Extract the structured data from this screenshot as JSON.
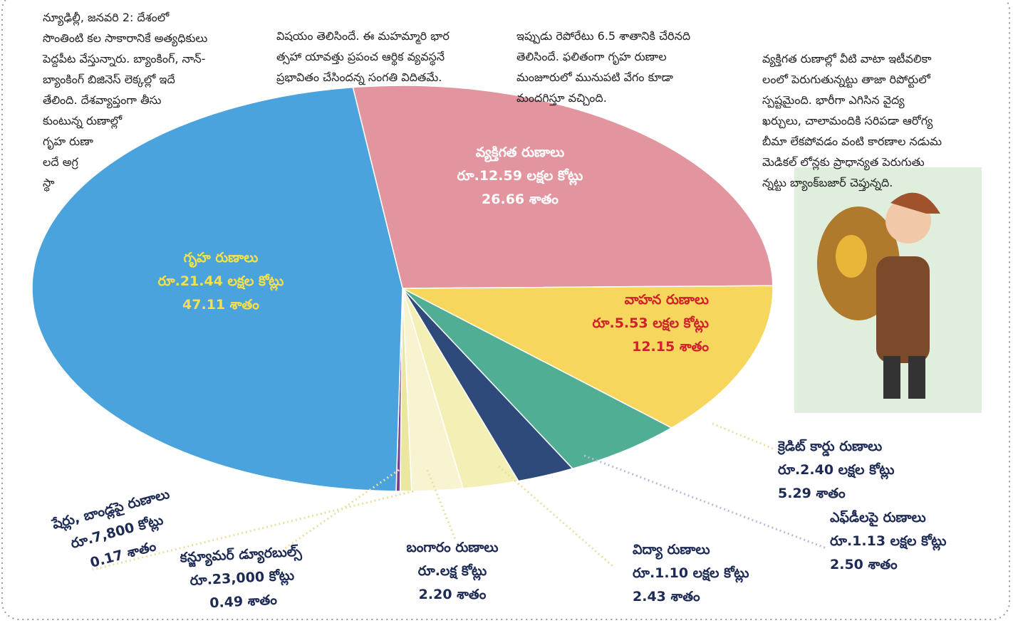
{
  "chart_data": {
    "type": "pie",
    "categories": [
      "వ్యక్తిగత రుణాలు",
      "వాహన రుణాలు",
      "క్రెడిట్ కార్డు రుణాలు",
      "ఎఫ్‌డీలపై రుణాలు",
      "విద్యా రుణాలు",
      "బంగారం రుణాలు",
      "కన్జ్యూమర్ డ్యూరబుల్స్",
      "షేర్లు, బాండ్లపై రుణాలు",
      "గృహ రుణాలు"
    ],
    "amounts": [
      "రూ.12.59 లక్షల కోట్లు",
      "రూ.5.53 లక్షల కోట్లు",
      "రూ.2.40 లక్షల కోట్లు",
      "రూ.1.13 లక్షల కోట్లు",
      "రూ.1.10 లక్షల కోట్లు",
      "రూ.లక్ష కోట్లు",
      "రూ.23,000 కోట్లు",
      "రూ.7,800 కోట్లు",
      "రూ.21.44 లక్షల కోట్లు"
    ],
    "values": [
      26.66,
      12.15,
      5.29,
      2.5,
      2.43,
      2.2,
      0.49,
      0.17,
      47.11
    ],
    "value_labels": [
      "26.66 శాతం",
      "12.15 శాతం",
      "5.29 శాతం",
      "2.50 శాతం",
      "2.43 శాతం",
      "2.20 శాతం",
      "0.49 శాతం",
      "0.17 శాతం",
      "47.11 శాతం"
    ],
    "colors": [
      "#e3959f",
      "#f6d65c",
      "#4fae94",
      "#2d4a7a",
      "#f4efb4",
      "#f8f4d2",
      "#ece7a0",
      "#7a3f8a",
      "#4aa3dc"
    ]
  },
  "article": {
    "columns": [
      [
        "న్యూఢిల్లీ, జనవరి 2: దేశంలో",
        "సొంతింటి కల సాకారానికే అత్యధికులు",
        "పెద్దపీట వేస్తున్నారు. బ్యాంకింగ్, నాన్-",
        "బ్యాంకింగ్ బిజినెస్ లెక్కల్లో ఇదే",
        "తేలింది. దేశవ్యాప్తంగా తీసు",
        "కుంటున్న రుణాల్లో",
        "గృహ రుణా",
        "లదే అగ్ర",
        "స్థా"
      ],
      [
        "విషయం తెలిసిందే. ఈ మహమ్మారి భార",
        "త్సహా యావత్తు ప్రపంచ ఆర్థిక వ్యవస్థనే",
        "ప్రభావితం చేసిందన్న సంగతి విదితమే."
      ],
      [
        "ఇప్పుడు రెపోరేటు 6.5 శాతానికి చేరినది",
        "తెలిసిందే. ఫలితంగా గృహ రుణాల",
        "మంజూరులో మునుపటి వేగం కూడా",
        "మందగిస్తూ వచ్చింది."
      ],
      [
        "వ్యక్తిగత రుణాల్లో వీటి వాటా ఇటీవలికా",
        "లంలో పెరుగుతున్నట్టు తాజా రిపోర్టులో",
        "స్పష్టమైంది. భారీగా ఎగిసిన వైద్య",
        "ఖర్చులు, చాలామందికి సరిపడా ఆరోగ్య",
        "బీమా లేకపోవడం వంటి కారణాల నడుమ",
        "మెడికల్ లోన్లకు ప్రాధాన్యత పెరుగుతు",
        "న్నట్టు బ్యాంక్‌బజార్ చెప్తున్నది."
      ]
    ]
  }
}
